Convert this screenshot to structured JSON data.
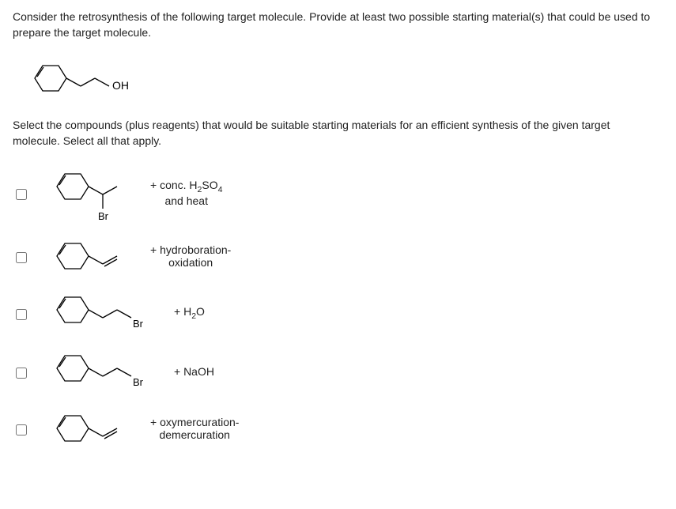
{
  "question": {
    "prompt_line1": "Consider the retrosynthesis of the following target molecule. Provide at least two possible starting material(s) that could be used to",
    "prompt_line2": "prepare the target molecule.",
    "target_label": "OH",
    "instruction_line1": "Select the compounds (plus reagents) that would be suitable starting materials for an efficient synthesis of the given target",
    "instruction_line2": "molecule. Select all that apply."
  },
  "options": [
    {
      "structure_type": "cyclohexane-CH(CH3)-Br",
      "sub_label": "Br",
      "reagent_html": "+ conc. H<sub>2</sub>SO<sub>4</sub><br>and heat"
    },
    {
      "structure_type": "cyclohexane-CH=CH2",
      "reagent_html": "+ hydroboration-<br>oxidation"
    },
    {
      "structure_type": "cyclohexane-CH2-CH2-Br",
      "sub_label": "Br",
      "reagent_html": "+ H<sub>2</sub>O"
    },
    {
      "structure_type": "cyclohexane-CH2-CH2-Br",
      "sub_label": "Br",
      "reagent_html": "+ NaOH"
    },
    {
      "structure_type": "cyclohexane-CH=CH2",
      "reagent_html": "+ oxymercuration-<br>demercuration"
    }
  ],
  "style": {
    "stroke": "#000000",
    "stroke_width": 1.3,
    "text_color": "#222222",
    "font_size_body": 14,
    "font_size_label": 13,
    "background": "#ffffff"
  }
}
